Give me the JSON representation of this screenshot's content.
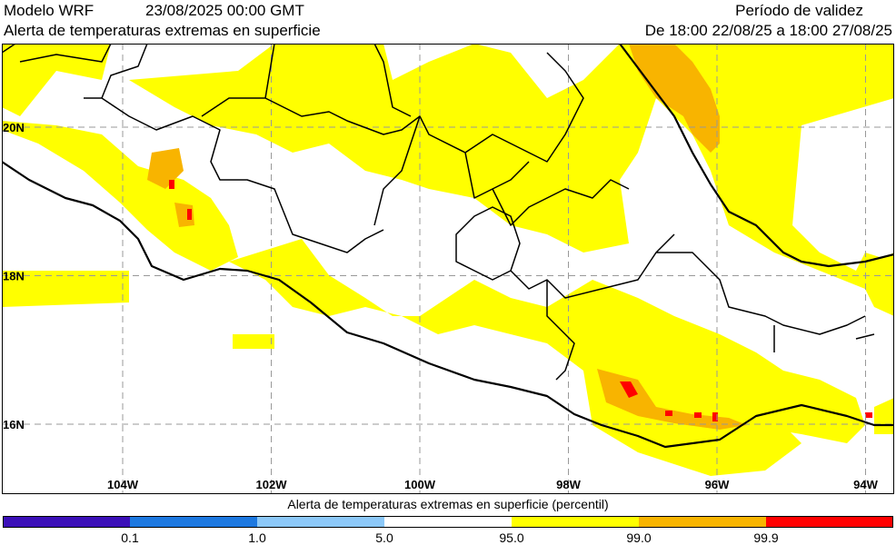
{
  "header": {
    "model": "Modelo WRF",
    "datetime": "23/08/2025 00:00 GMT",
    "title": "Alerta de temperaturas extremas en superficie",
    "validity_label": "Período de validez",
    "validity_range": "De 18:00 22/08/25 a 18:00 27/08/25"
  },
  "map": {
    "lat_labels": [
      "20N",
      "18N",
      "16N"
    ],
    "lon_labels": [
      "104W",
      "102W",
      "100W",
      "98W",
      "96W",
      "94W"
    ],
    "lat_values": [
      20,
      18,
      16
    ],
    "lon_values": [
      -104,
      -102,
      -100,
      -98,
      -96,
      -94
    ],
    "colors": {
      "p95_99": "#ffff00",
      "p99_99_9": "#f8b400",
      "p99_9": "#ff0000",
      "coast": "#000000",
      "grid": "#999999"
    }
  },
  "colorbar": {
    "title": "Alerta de temperaturas extremas en superficie (percentil)",
    "tick_labels": [
      "0.1",
      "1.0",
      "5.0",
      "95.0",
      "99.0",
      "99.9"
    ],
    "segment_colors": [
      "#3b0fb8",
      "#1c78e0",
      "#8cc8f8",
      "#ffffff",
      "#ffff00",
      "#f8b400",
      "#ff0000"
    ]
  }
}
